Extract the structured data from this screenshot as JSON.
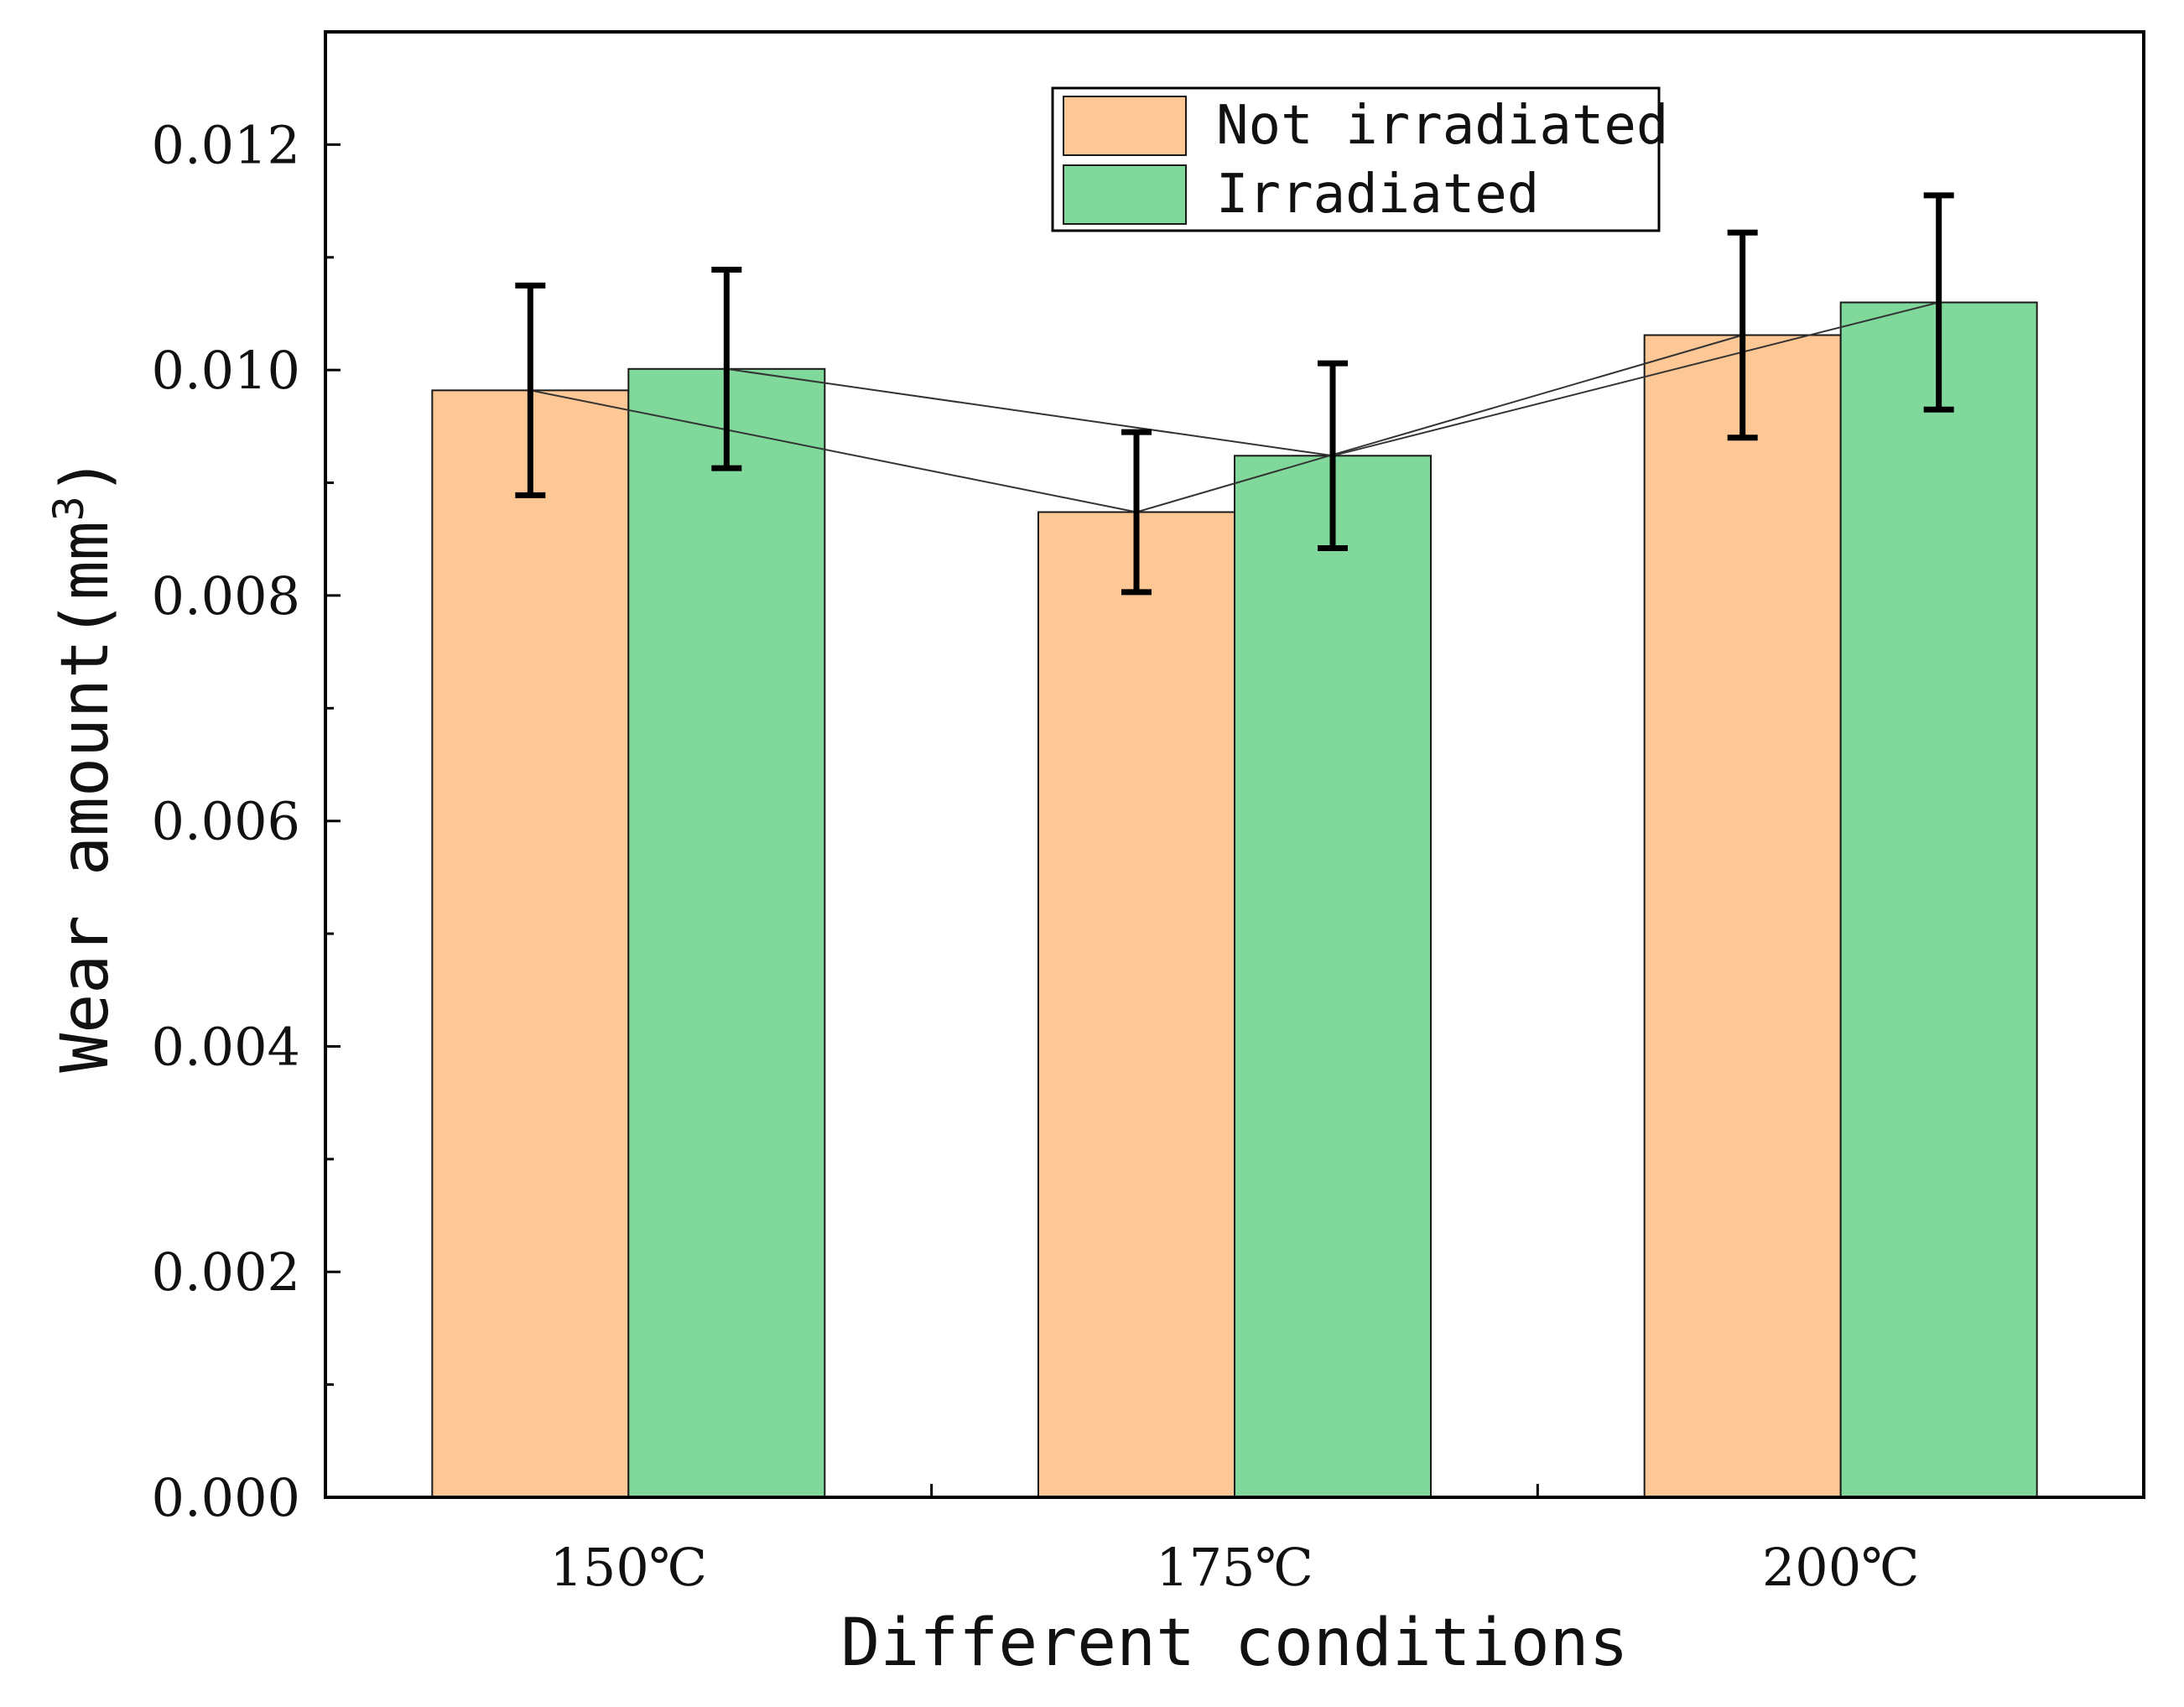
{
  "chart_data": {
    "type": "bar",
    "title": "",
    "xlabel": "Different conditions",
    "ylabel": "Wear amount(mm³)",
    "ylabel_parts": {
      "main": "Wear amount(mm",
      "sup": "3",
      "end": ")"
    },
    "ylim": [
      0,
      0.013
    ],
    "yticks": [
      0.0,
      0.002,
      0.004,
      0.006,
      0.008,
      0.01,
      0.012
    ],
    "ytick_labels": [
      "0.000",
      "0.002",
      "0.004",
      "0.006",
      "0.008",
      "0.010",
      "0.012"
    ],
    "categories": [
      "150℃",
      "175℃",
      "200℃"
    ],
    "series": [
      {
        "name": "Not irradiated",
        "color": "#FDC796",
        "values": [
          0.00982,
          0.00874,
          0.01031
        ],
        "errors": [
          0.00093,
          0.00071,
          0.00091
        ]
      },
      {
        "name": "Irradiated",
        "color": "#80D99B",
        "values": [
          0.01001,
          0.00924,
          0.0106
        ],
        "errors": [
          0.00088,
          0.00082,
          0.00095
        ]
      }
    ],
    "legend_position": "top-center",
    "grid": false,
    "connector_lines": true
  }
}
